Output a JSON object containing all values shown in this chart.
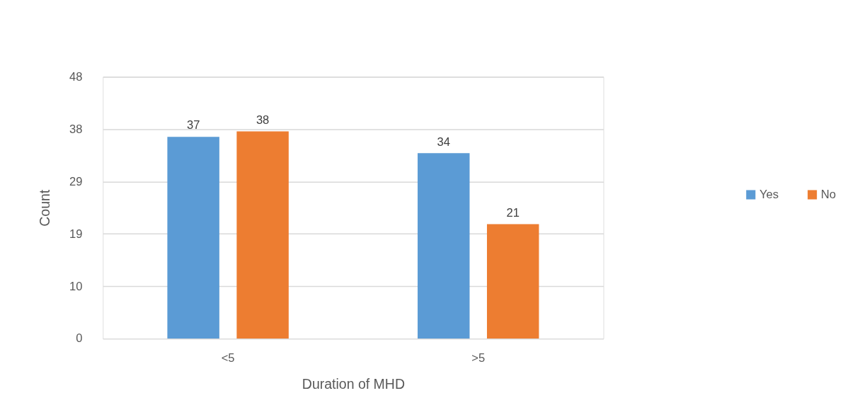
{
  "chart_data": {
    "type": "bar",
    "xlabel": "Duration of MHD",
    "ylabel": "Count",
    "categories": [
      "<5",
      ">5"
    ],
    "series": [
      {
        "name": "Yes",
        "color": "#5b9bd5",
        "values": [
          37,
          34
        ]
      },
      {
        "name": "No",
        "color": "#ed7d31",
        "values": [
          38,
          21
        ]
      }
    ],
    "ylim": [
      0,
      48
    ],
    "yticks": [
      0,
      {
        "value": 9.6,
        "label": "10"
      },
      {
        "value": 19.2,
        "label": "19"
      },
      {
        "value": 28.8,
        "label": "29"
      },
      {
        "value": 38.4,
        "label": "38"
      },
      48
    ],
    "grid": "y",
    "legend": "right",
    "data_labels": true
  }
}
